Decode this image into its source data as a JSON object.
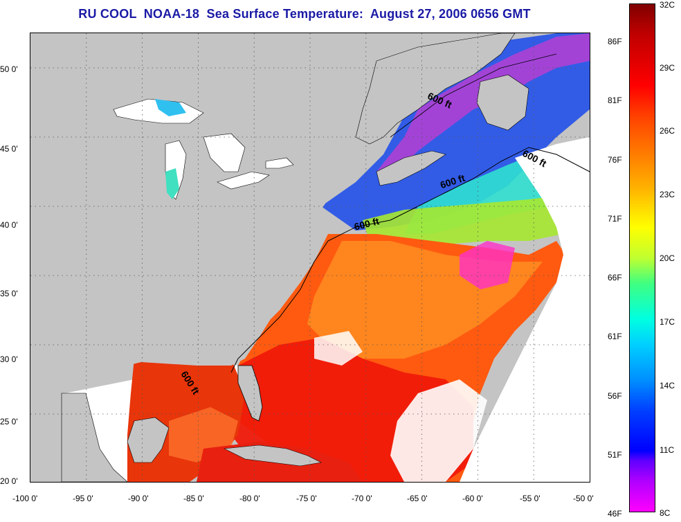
{
  "title": "RU COOL  NOAA-18  Sea Surface Temperature:  August 27, 2006 0656 GMT",
  "map": {
    "x_ticks": [
      "-100 0'",
      "-95 0'",
      "-90 0'",
      "-85 0'",
      "-80 0'",
      "-75 0'",
      "-70 0'",
      "-65 0'",
      "-60 0'",
      "-55 0'",
      "-50 0'"
    ],
    "y_ticks": [
      "50 0'",
      "45 0'",
      "40 0'",
      "35 0'",
      "30 0'",
      "25 0'",
      "20 0'"
    ],
    "lon_range": [
      -100,
      -50
    ],
    "lat_range": [
      20,
      52.5
    ],
    "gridlines": "dotted",
    "land_color": "#c4c4c4",
    "missing_data_color": "#ffffff",
    "contour_label": "600 ft",
    "contour_labels": [
      "600 ft",
      "600 ft",
      "600 ft",
      "600 ft",
      "600 ft"
    ]
  },
  "colorbar": {
    "celsius_labels": [
      "32C",
      "29C",
      "26C",
      "23C",
      "20C",
      "17C",
      "14C",
      "11C",
      "8C"
    ],
    "fahrenheit_labels": [
      "86F",
      "81F",
      "76F",
      "71F",
      "66F",
      "61F",
      "56F",
      "51F",
      "46F"
    ],
    "range_c": [
      8,
      32
    ],
    "range_f": [
      46,
      90
    ]
  }
}
